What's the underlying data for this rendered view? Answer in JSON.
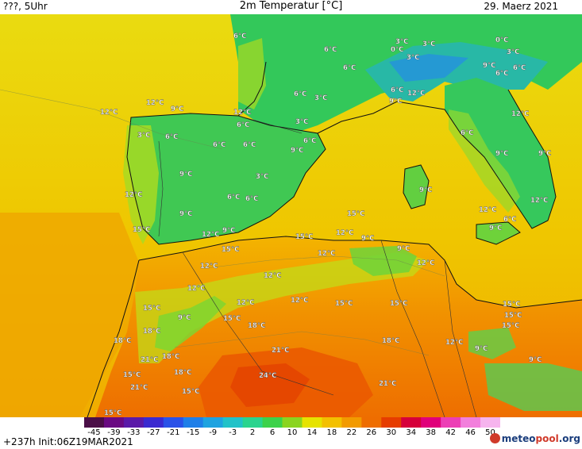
{
  "header": {
    "left": "???, 5Uhr",
    "title": "2m Temperatur [°C]",
    "date": "29. Maerz 2021"
  },
  "footer": {
    "run_info": "+237h Init:06Z19MAR2021",
    "logo_text_main": "meteo",
    "logo_text_accent": "pool",
    "logo_text_tail": ".org"
  },
  "colorbar": {
    "ticks": [
      "-45",
      "-39",
      "-33",
      "-27",
      "-21",
      "-15",
      "-9",
      "-3",
      "2",
      "6",
      "10",
      "14",
      "18",
      "22",
      "26",
      "30",
      "34",
      "38",
      "42",
      "46",
      "50"
    ],
    "colors": [
      "#4b0f47",
      "#6a0a82",
      "#5a1aa8",
      "#3a2ad0",
      "#2a52e8",
      "#1f7fe8",
      "#1fa3e0",
      "#22c2c8",
      "#2ad48e",
      "#3cd24a",
      "#8ad420",
      "#e6e300",
      "#f3c000",
      "#f29a00",
      "#ee6d00",
      "#e63d00",
      "#d6003a",
      "#e0007a",
      "#ec3fb5",
      "#f27fdc",
      "#f6b4ee"
    ]
  },
  "map": {
    "labels": [
      {
        "t": "6°C"
      },
      {
        "t": "6°C"
      },
      {
        "t": "3°C"
      },
      {
        "t": "0°C"
      },
      {
        "t": "3°C"
      },
      {
        "t": "0°C"
      },
      {
        "t": "3°C"
      },
      {
        "t": "6°C"
      },
      {
        "t": "3°C"
      },
      {
        "t": "9°C"
      },
      {
        "t": "6°C"
      },
      {
        "t": "6°C"
      },
      {
        "t": "6°C"
      },
      {
        "t": "12°C"
      },
      {
        "t": "9°C"
      },
      {
        "t": "12°C"
      },
      {
        "t": "12°C"
      },
      {
        "t": "9°C"
      },
      {
        "t": "12°C"
      },
      {
        "t": "6°C"
      },
      {
        "t": "3°C"
      },
      {
        "t": "3°C"
      },
      {
        "t": "6°C"
      },
      {
        "t": "6°C"
      },
      {
        "t": "6°C"
      },
      {
        "t": "6°C"
      },
      {
        "t": "9°C"
      },
      {
        "t": "6°C"
      },
      {
        "t": "3°C"
      },
      {
        "t": "12°C"
      },
      {
        "t": "9°C"
      },
      {
        "t": "6°C"
      },
      {
        "t": "9°C"
      },
      {
        "t": "9°C"
      },
      {
        "t": "3°C"
      },
      {
        "t": "9°C"
      },
      {
        "t": "12°C"
      },
      {
        "t": "6°C"
      },
      {
        "t": "6°C"
      },
      {
        "t": "12°C"
      },
      {
        "t": "9°C"
      },
      {
        "t": "6°C"
      },
      {
        "t": "12°C"
      },
      {
        "t": "9°C"
      },
      {
        "t": "15°C"
      },
      {
        "t": "15°C"
      },
      {
        "t": "12°C"
      },
      {
        "t": "9°C"
      },
      {
        "t": "15°C"
      },
      {
        "t": "15°C"
      },
      {
        "t": "12°C"
      },
      {
        "t": "9°C"
      },
      {
        "t": "12°C"
      },
      {
        "t": "12°C"
      },
      {
        "t": "9°C"
      },
      {
        "t": "12°C"
      },
      {
        "t": "12°C"
      },
      {
        "t": "12°C"
      },
      {
        "t": "12°C"
      },
      {
        "t": "15°C"
      },
      {
        "t": "12°C"
      },
      {
        "t": "15°C"
      },
      {
        "t": "15°C"
      },
      {
        "t": "15°C"
      },
      {
        "t": "9°C"
      },
      {
        "t": "15°C"
      },
      {
        "t": "18°C"
      },
      {
        "t": "18°C"
      },
      {
        "t": "18°C"
      },
      {
        "t": "21°C"
      },
      {
        "t": "18°C"
      },
      {
        "t": "15°C"
      },
      {
        "t": "15°C"
      },
      {
        "t": "12°C"
      },
      {
        "t": "9°C"
      },
      {
        "t": "18°C"
      },
      {
        "t": "21°C"
      },
      {
        "t": "9°C"
      },
      {
        "t": "24°C"
      },
      {
        "t": "21°C"
      },
      {
        "t": "15°C"
      },
      {
        "t": "21°C"
      },
      {
        "t": "15°C"
      },
      {
        "t": "15°C"
      },
      {
        "t": "18°C"
      }
    ]
  }
}
